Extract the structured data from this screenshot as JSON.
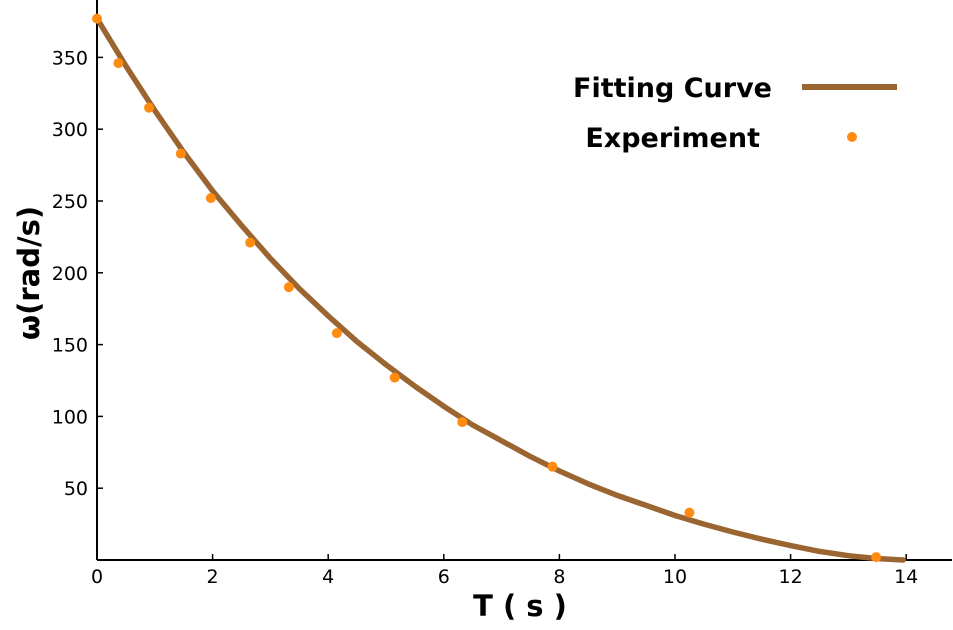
{
  "chart_data": {
    "type": "line",
    "title": "",
    "xlabel": "T ( s )",
    "ylabel": "ω(rad/s)",
    "xlim": [
      0,
      14.8
    ],
    "ylim": [
      0,
      380
    ],
    "xticks": [
      0,
      2,
      4,
      6,
      8,
      10,
      12,
      14
    ],
    "yticks": [
      50,
      100,
      150,
      200,
      250,
      300,
      350
    ],
    "grid": false,
    "legend_position": "top-right",
    "series": [
      {
        "name": "Fitting Curve",
        "kind": "line",
        "color": "#9B6531",
        "x": [
          0,
          0.5,
          1,
          1.5,
          2,
          2.5,
          3,
          3.5,
          4,
          4.5,
          5,
          5.5,
          6,
          6.5,
          7,
          7.5,
          8,
          8.5,
          9,
          9.5,
          10,
          10.5,
          11,
          11.5,
          12,
          12.5,
          13,
          13.5,
          13.95
        ],
        "y": [
          377,
          344,
          313,
          284,
          257,
          233,
          210,
          189,
          170,
          152,
          136,
          121,
          107,
          94,
          83,
          72,
          62,
          53,
          45,
          38,
          31,
          25,
          19.5,
          14.5,
          10,
          6,
          3,
          1,
          0
        ]
      },
      {
        "name": "Experiment",
        "kind": "scatter",
        "color": "#FF8C10",
        "x": [
          0,
          0.37,
          0.9,
          1.45,
          1.97,
          2.65,
          3.32,
          4.15,
          5.15,
          6.32,
          7.88,
          10.25,
          13.48
        ],
        "y": [
          377,
          346,
          315,
          283,
          252,
          221,
          190,
          158,
          127,
          96,
          65,
          33,
          2
        ]
      }
    ]
  }
}
